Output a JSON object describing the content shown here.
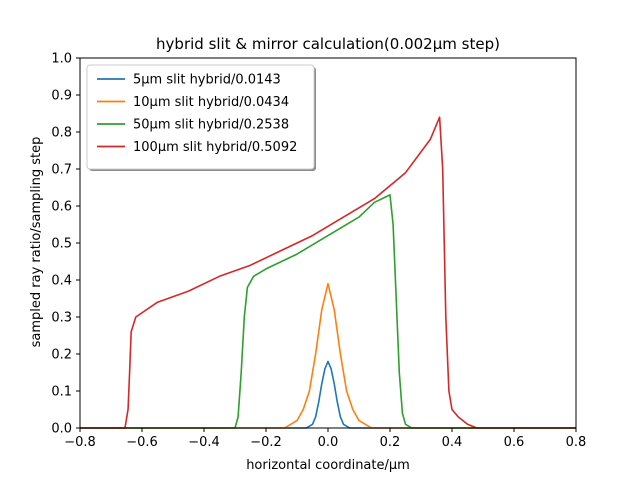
{
  "chart_data": {
    "type": "line",
    "title": "hybrid slit & mirror calculation(0.002μm step)",
    "xlabel": "horizontal coordinate/μm",
    "ylabel": "sampled ray ratio/sampling step",
    "xlim": [
      -0.8,
      0.8
    ],
    "ylim": [
      0.0,
      1.0
    ],
    "xticks": [
      -0.8,
      -0.6,
      -0.4,
      -0.2,
      0.0,
      0.2,
      0.4,
      0.6,
      0.8
    ],
    "xtick_labels": [
      "−0.8",
      "−0.6",
      "−0.4",
      "−0.2",
      "0.0",
      "0.2",
      "0.4",
      "0.6",
      "0.8"
    ],
    "yticks": [
      0.0,
      0.1,
      0.2,
      0.3,
      0.4,
      0.5,
      0.6,
      0.7,
      0.8,
      0.9,
      1.0
    ],
    "ytick_labels": [
      "0.0",
      "0.1",
      "0.2",
      "0.3",
      "0.4",
      "0.5",
      "0.6",
      "0.7",
      "0.8",
      "0.9",
      "1.0"
    ],
    "grid": false,
    "legend_position": "top-left",
    "series": [
      {
        "name": "5μm slit hybrid/0.0143",
        "color": "#1f77b4",
        "x": [
          -0.8,
          -0.07,
          -0.05,
          -0.04,
          -0.03,
          -0.02,
          -0.01,
          0.0,
          0.01,
          0.02,
          0.03,
          0.04,
          0.05,
          0.07,
          0.8
        ],
        "y": [
          0.0,
          0.0,
          0.01,
          0.03,
          0.07,
          0.12,
          0.16,
          0.18,
          0.16,
          0.12,
          0.07,
          0.03,
          0.01,
          0.0,
          0.0
        ]
      },
      {
        "name": "10μm slit hybrid/0.0434",
        "color": "#ff7f0e",
        "x": [
          -0.8,
          -0.14,
          -0.1,
          -0.08,
          -0.06,
          -0.04,
          -0.02,
          0.0,
          0.02,
          0.04,
          0.06,
          0.08,
          0.1,
          0.14,
          0.8
        ],
        "y": [
          0.0,
          0.0,
          0.02,
          0.05,
          0.1,
          0.2,
          0.32,
          0.39,
          0.32,
          0.2,
          0.1,
          0.05,
          0.02,
          0.0,
          0.0
        ]
      },
      {
        "name": "50μm slit hybrid/0.2538",
        "color": "#2ca02c",
        "x": [
          -0.8,
          -0.3,
          -0.29,
          -0.28,
          -0.27,
          -0.26,
          -0.24,
          -0.2,
          -0.1,
          0.0,
          0.1,
          0.15,
          0.2,
          0.21,
          0.22,
          0.23,
          0.24,
          0.25,
          0.27,
          0.8
        ],
        "y": [
          0.0,
          0.0,
          0.03,
          0.15,
          0.3,
          0.38,
          0.41,
          0.43,
          0.47,
          0.52,
          0.57,
          0.61,
          0.63,
          0.55,
          0.35,
          0.15,
          0.04,
          0.01,
          0.0,
          0.0
        ]
      },
      {
        "name": "100μm slit hybrid/0.5092",
        "color": "#d62728",
        "x": [
          -0.8,
          -0.655,
          -0.645,
          -0.64,
          -0.635,
          -0.62,
          -0.55,
          -0.45,
          -0.35,
          -0.25,
          -0.15,
          -0.05,
          0.05,
          0.15,
          0.25,
          0.33,
          0.36,
          0.37,
          0.375,
          0.38,
          0.39,
          0.4,
          0.42,
          0.45,
          0.48,
          0.8
        ],
        "y": [
          0.0,
          0.0,
          0.05,
          0.15,
          0.26,
          0.3,
          0.34,
          0.37,
          0.41,
          0.44,
          0.48,
          0.52,
          0.57,
          0.62,
          0.69,
          0.78,
          0.84,
          0.7,
          0.5,
          0.3,
          0.1,
          0.05,
          0.03,
          0.01,
          0.0,
          0.0
        ]
      }
    ]
  }
}
